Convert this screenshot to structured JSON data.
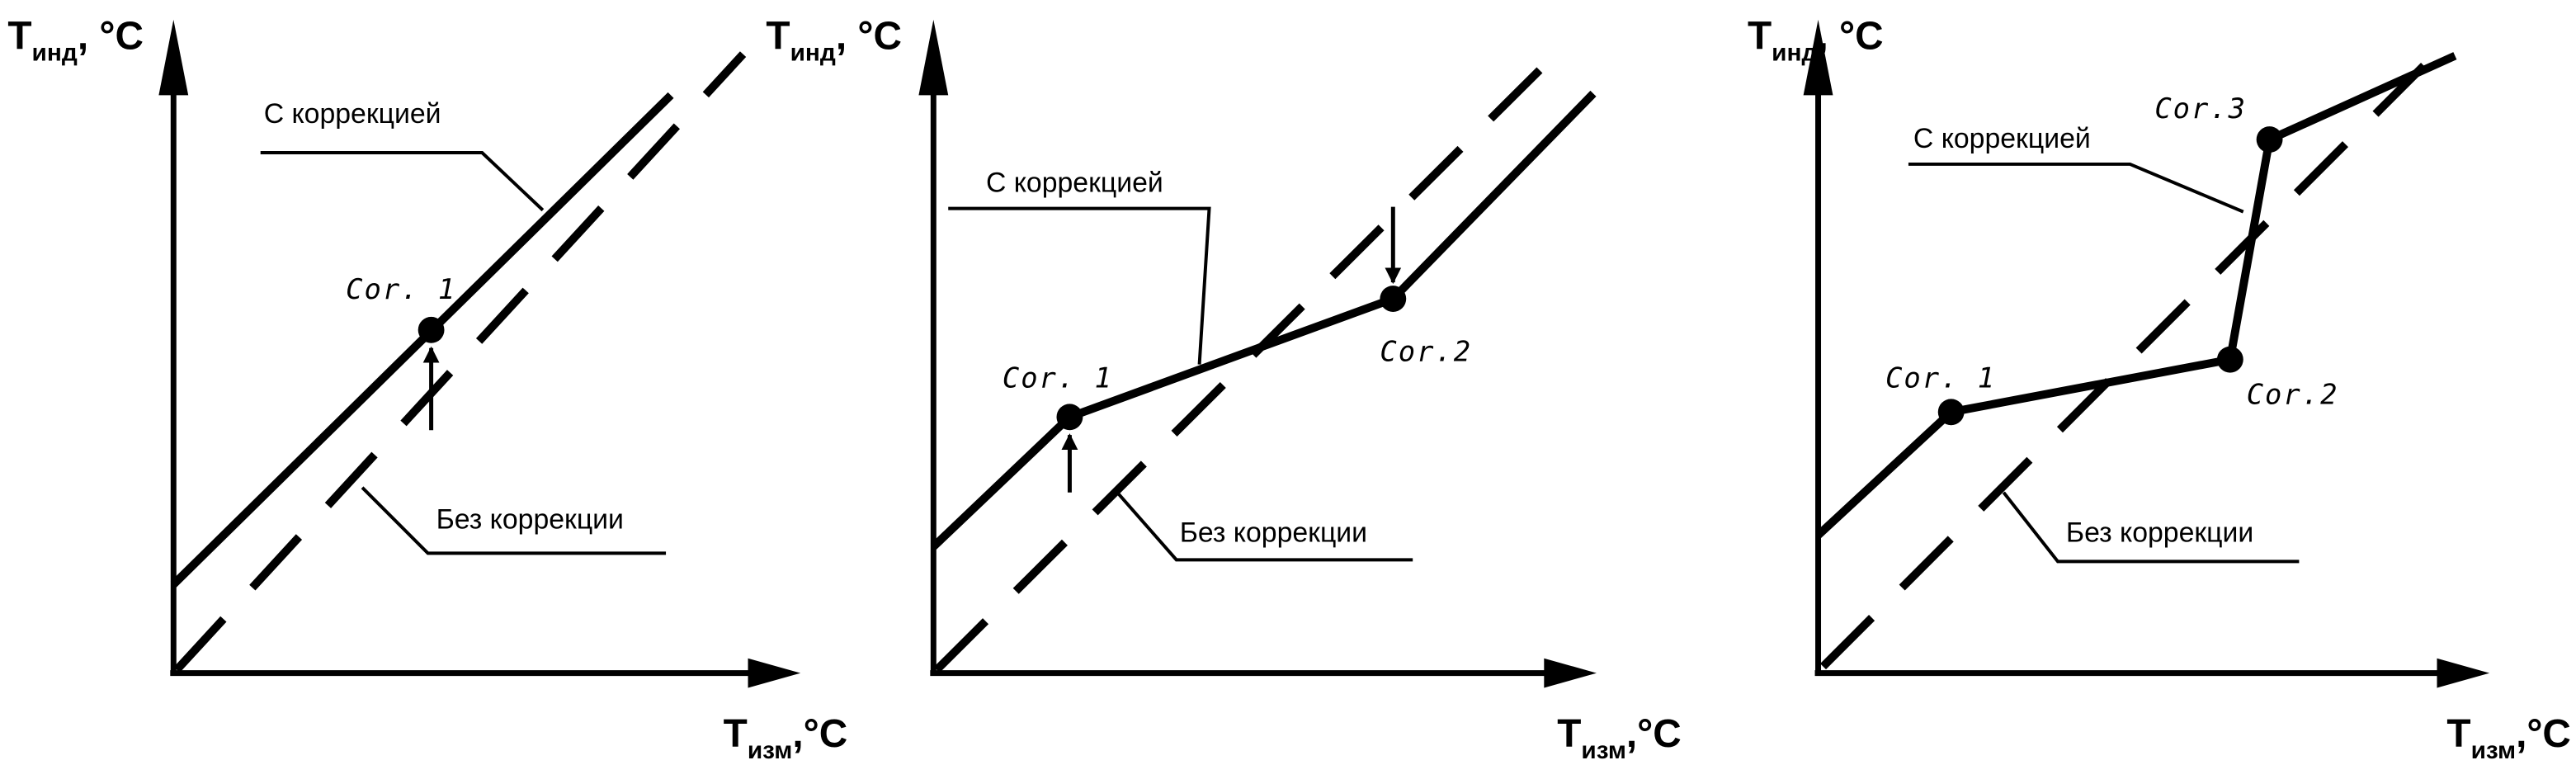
{
  "diagrams": [
    {
      "y_axis_label": {
        "main": "T",
        "sub": "инд",
        "unit": ", °C"
      },
      "x_axis_label": {
        "main": "T",
        "sub": "изм",
        "unit": ",°C"
      },
      "with_correction": "С коррекцией",
      "without_correction": "Без коррекции",
      "points": [
        "Cor. 1"
      ]
    },
    {
      "y_axis_label": {
        "main": "T",
        "sub": "инд",
        "unit": ", °C"
      },
      "x_axis_label": {
        "main": "T",
        "sub": "изм",
        "unit": ",°C"
      },
      "with_correction": "С коррекцией",
      "without_correction": "Без коррекции",
      "points": [
        "Cor. 1",
        "Cor.2"
      ]
    },
    {
      "y_axis_label": {
        "main": "T",
        "sub": "инд",
        "unit": ", °C"
      },
      "x_axis_label": {
        "main": "T",
        "sub": "изм",
        "unit": ",°C"
      },
      "with_correction": "С коррекцией",
      "without_correction": "Без коррекции",
      "points": [
        "Cor. 1",
        "Cor.2",
        "Cor.3"
      ]
    }
  ],
  "colors": {
    "line": "#000000",
    "background": "#ffffff"
  }
}
